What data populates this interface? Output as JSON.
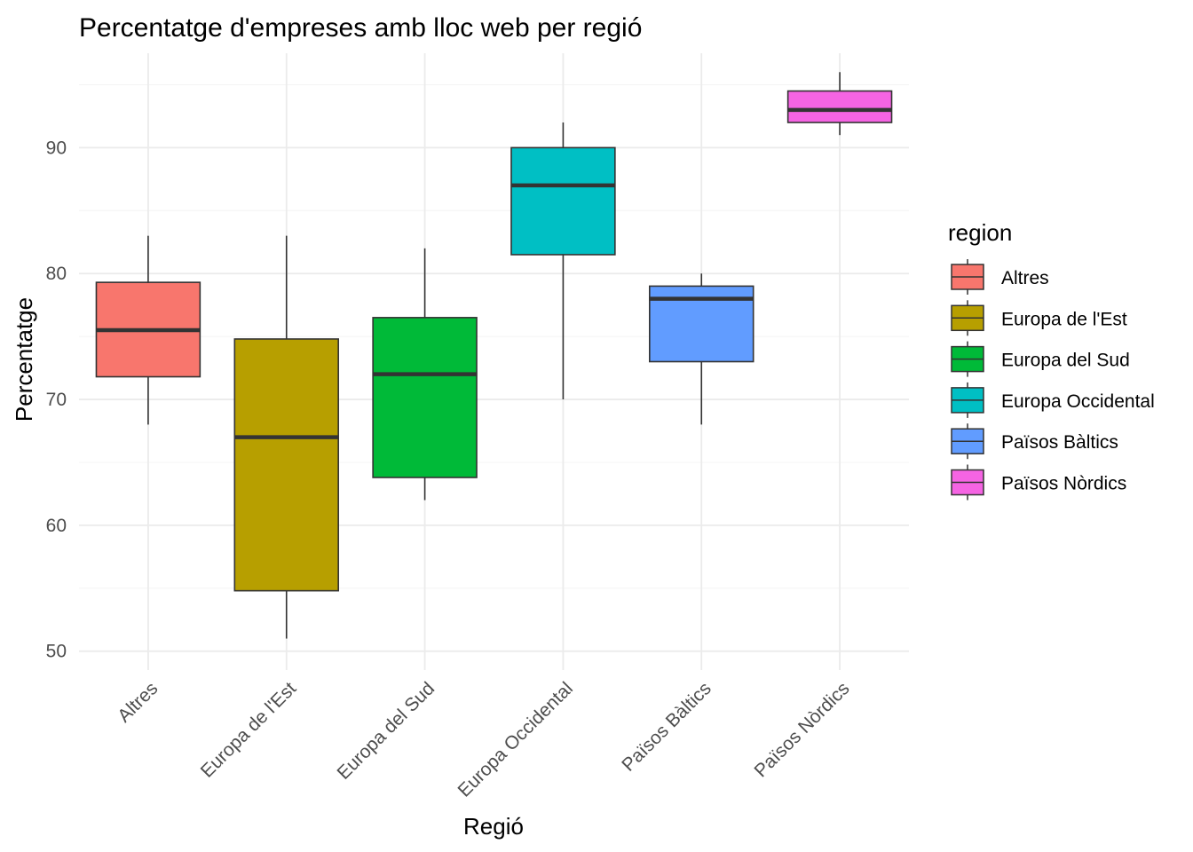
{
  "chart_data": {
    "type": "boxplot",
    "title": "Percentatge d'empreses amb lloc web per regió",
    "xlabel": "Regió",
    "ylabel": "Percentatge",
    "ylim": [
      48.5,
      97.5
    ],
    "yticks": [
      50,
      60,
      70,
      80,
      90
    ],
    "grid": true,
    "legend": {
      "title": "region",
      "position": "right"
    },
    "categories": [
      "Altres",
      "Europa de l'Est",
      "Europa del Sud",
      "Europa Occidental",
      "Països Bàltics",
      "Països Nòrdics"
    ],
    "boxes": [
      {
        "name": "Altres",
        "color": "#F8766D",
        "min": 68,
        "q1": 71.8,
        "median": 75.5,
        "q3": 79.3,
        "max": 83
      },
      {
        "name": "Europa de l'Est",
        "color": "#B79F00",
        "min": 51,
        "q1": 54.8,
        "median": 67,
        "q3": 74.8,
        "max": 83
      },
      {
        "name": "Europa del Sud",
        "color": "#00BA38",
        "min": 62,
        "q1": 63.8,
        "median": 72,
        "q3": 76.5,
        "max": 82
      },
      {
        "name": "Europa Occidental",
        "color": "#00BFC4",
        "min": 70,
        "q1": 81.5,
        "median": 87,
        "q3": 90,
        "max": 92
      },
      {
        "name": "Països Bàltics",
        "color": "#619CFF",
        "min": 68,
        "q1": 73,
        "median": 78,
        "q3": 79,
        "max": 80
      },
      {
        "name": "Països Nòrdics",
        "color": "#F564E3",
        "min": 91,
        "q1": 92,
        "median": 93,
        "q3": 94.5,
        "max": 96
      }
    ]
  }
}
